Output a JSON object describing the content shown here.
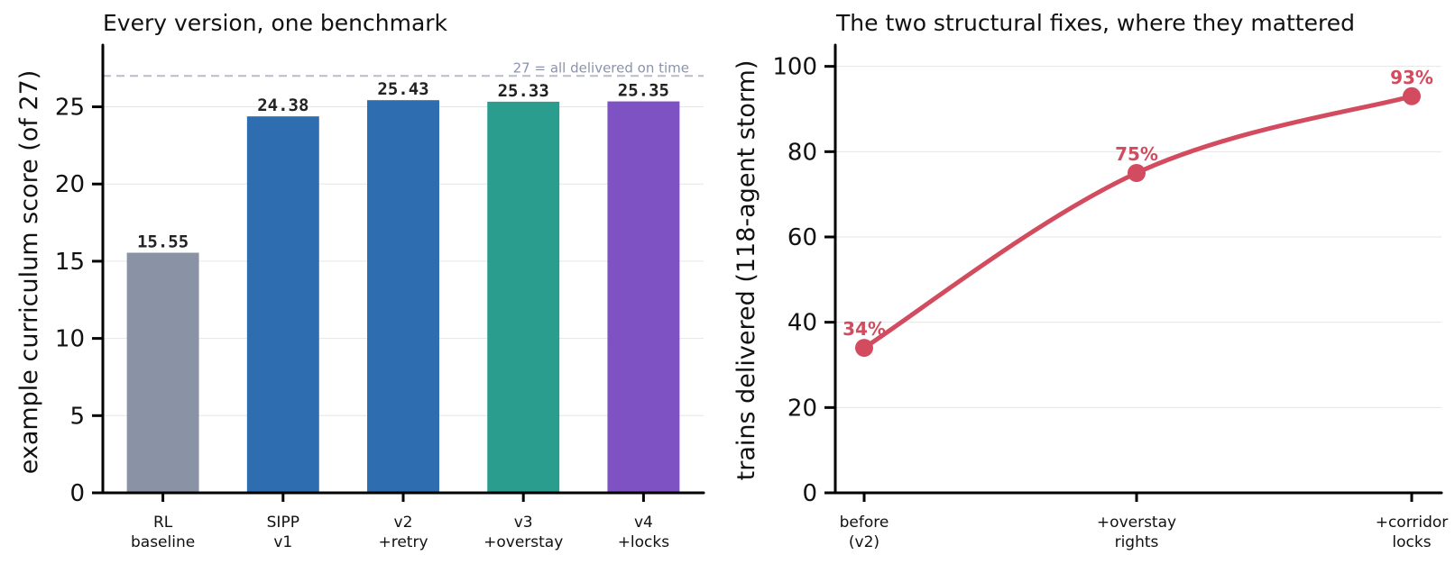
{
  "chart_data": [
    {
      "type": "bar",
      "title": "Every version, one benchmark",
      "ylabel": "example curriculum score (of 27)",
      "xlabel": "",
      "ylim": [
        0,
        29
      ],
      "yticks": [
        "0",
        "5",
        "10",
        "15",
        "20",
        "25"
      ],
      "grid": "horizontal",
      "categories": [
        "RL\nbaseline",
        "SIPP\nv1",
        "v2\n+retry",
        "v3\n+overstay",
        "v4\n+locks"
      ],
      "values": [
        15.55,
        24.38,
        25.43,
        25.33,
        25.35
      ],
      "value_labels": [
        "15.55",
        "24.38",
        "25.43",
        "25.33",
        "25.35"
      ],
      "colors": [
        "#8a93a6",
        "#2e6db0",
        "#2e6db0",
        "#2a9d8f",
        "#7e52c2"
      ],
      "reference_line": {
        "value": 27,
        "label": "27 = all delivered on time",
        "color": "#b8bccc"
      }
    },
    {
      "type": "line",
      "title": "The two structural fixes, where they mattered",
      "ylabel": "trains delivered (118-agent storm)",
      "xlabel": "",
      "ylim": [
        0,
        105
      ],
      "yticks": [
        "0",
        "20",
        "40",
        "60",
        "80",
        "100"
      ],
      "grid": "horizontal",
      "categories": [
        "before\n(v2)",
        "+overstay\nrights",
        "+corridor\nlocks"
      ],
      "values": [
        34,
        75,
        93
      ],
      "value_labels": [
        "34%",
        "75%",
        "93%"
      ],
      "color": "#d24b5e"
    }
  ]
}
